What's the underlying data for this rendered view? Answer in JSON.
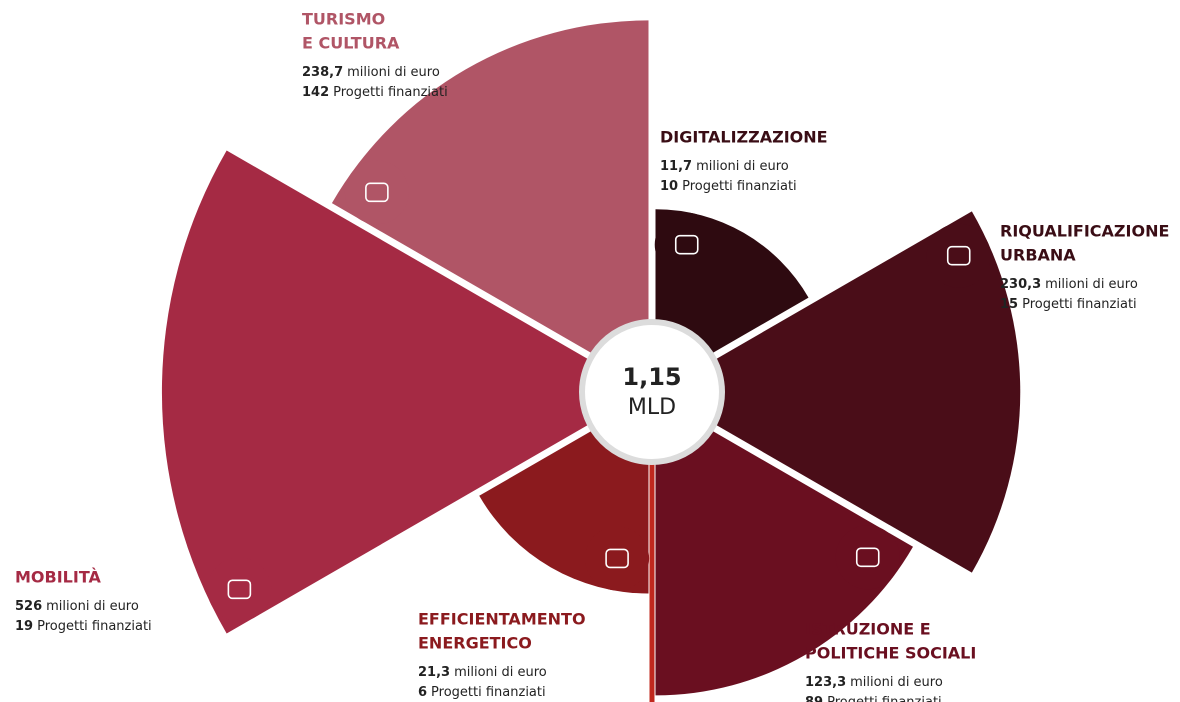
{
  "chart_data": {
    "type": "rose",
    "categories": [
      [
        "TURISMO",
        "E CULTURA"
      ],
      [
        "MOBILITÀ"
      ],
      [
        "EFFICIENTAMENTO",
        "ENERGETICO"
      ],
      [
        "ISTRUZIONE E",
        "POLITICHE SOCIALI"
      ],
      [
        "RIQUALIFICAZIONE",
        "URBANA"
      ],
      [
        "DIGITALIZZAZIONE"
      ]
    ],
    "values": [
      238.7,
      526,
      21.3,
      123.3,
      230.3,
      11.7
    ],
    "value_labels": [
      "238,7",
      "526",
      "21,3",
      "123,3",
      "230,3",
      "11,7"
    ],
    "unit_text": "milioni di euro",
    "projects": [
      142,
      19,
      6,
      89,
      15,
      10
    ],
    "projects_text": "Progetti finanziati",
    "colors": [
      "#b05566",
      "#a52a44",
      "#8b1a1e",
      "#6a0f20",
      "#4a0d18",
      "#2e0a10"
    ],
    "label_colors": [
      "#b05566",
      "#a52a44",
      "#8b1a1e",
      "#6a0f20",
      "#3a0d15",
      "#3a0d15"
    ],
    "total": 1.15,
    "total_label": "1,15",
    "total_unit": "MLD"
  }
}
